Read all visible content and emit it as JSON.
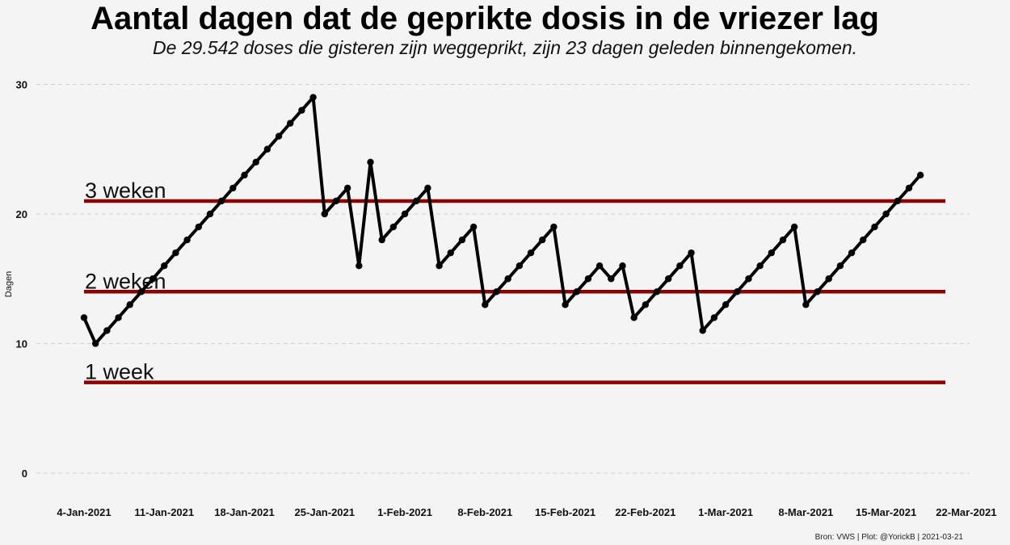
{
  "title": "Aantal dagen dat de geprikte dosis in de vriezer lag",
  "subtitle": "De 29.542 doses die gisteren zijn weggeprikt, zijn 23 dagen geleden binnengekomen.",
  "caption": "Bron: VWS | Plot: @YorickB  |  2021-03-21",
  "chart_data": {
    "type": "line",
    "ylabel": "Dagen",
    "xlabel": "",
    "ylim": [
      0,
      30
    ],
    "yticks": [
      0,
      10,
      20,
      30
    ],
    "grid": "horizontal dashed",
    "x_start": "2021-01-04",
    "x_end": "2021-03-20",
    "xticks": [
      "4-Jan-2021",
      "11-Jan-2021",
      "18-Jan-2021",
      "25-Jan-2021",
      "1-Feb-2021",
      "8-Feb-2021",
      "15-Feb-2021",
      "22-Feb-2021",
      "1-Mar-2021",
      "8-Mar-2021",
      "15-Mar-2021",
      "22-Mar-2021"
    ],
    "series": [
      {
        "values": [
          12,
          10,
          11,
          12,
          13,
          14,
          15,
          16,
          17,
          18,
          19,
          20,
          21,
          22,
          23,
          24,
          25,
          26,
          27,
          28,
          29,
          20,
          21,
          22,
          16,
          24,
          18,
          19,
          20,
          21,
          22,
          16,
          17,
          18,
          19,
          13,
          14,
          15,
          16,
          17,
          18,
          19,
          13,
          14,
          15,
          16,
          15,
          16,
          12,
          13,
          14,
          15,
          16,
          17,
          11,
          12,
          13,
          14,
          15,
          16,
          17,
          18,
          19,
          13,
          14,
          15,
          16,
          17,
          18,
          19,
          20,
          21,
          22,
          23
        ]
      }
    ],
    "reference_lines": [
      {
        "label": "3 weken",
        "value": 21
      },
      {
        "label": "2 weken",
        "value": 14
      },
      {
        "label": "1 week",
        "value": 7
      }
    ],
    "colors": {
      "line": "#000000",
      "reference": "#8b0000",
      "grid": "#d0d0d0"
    }
  }
}
